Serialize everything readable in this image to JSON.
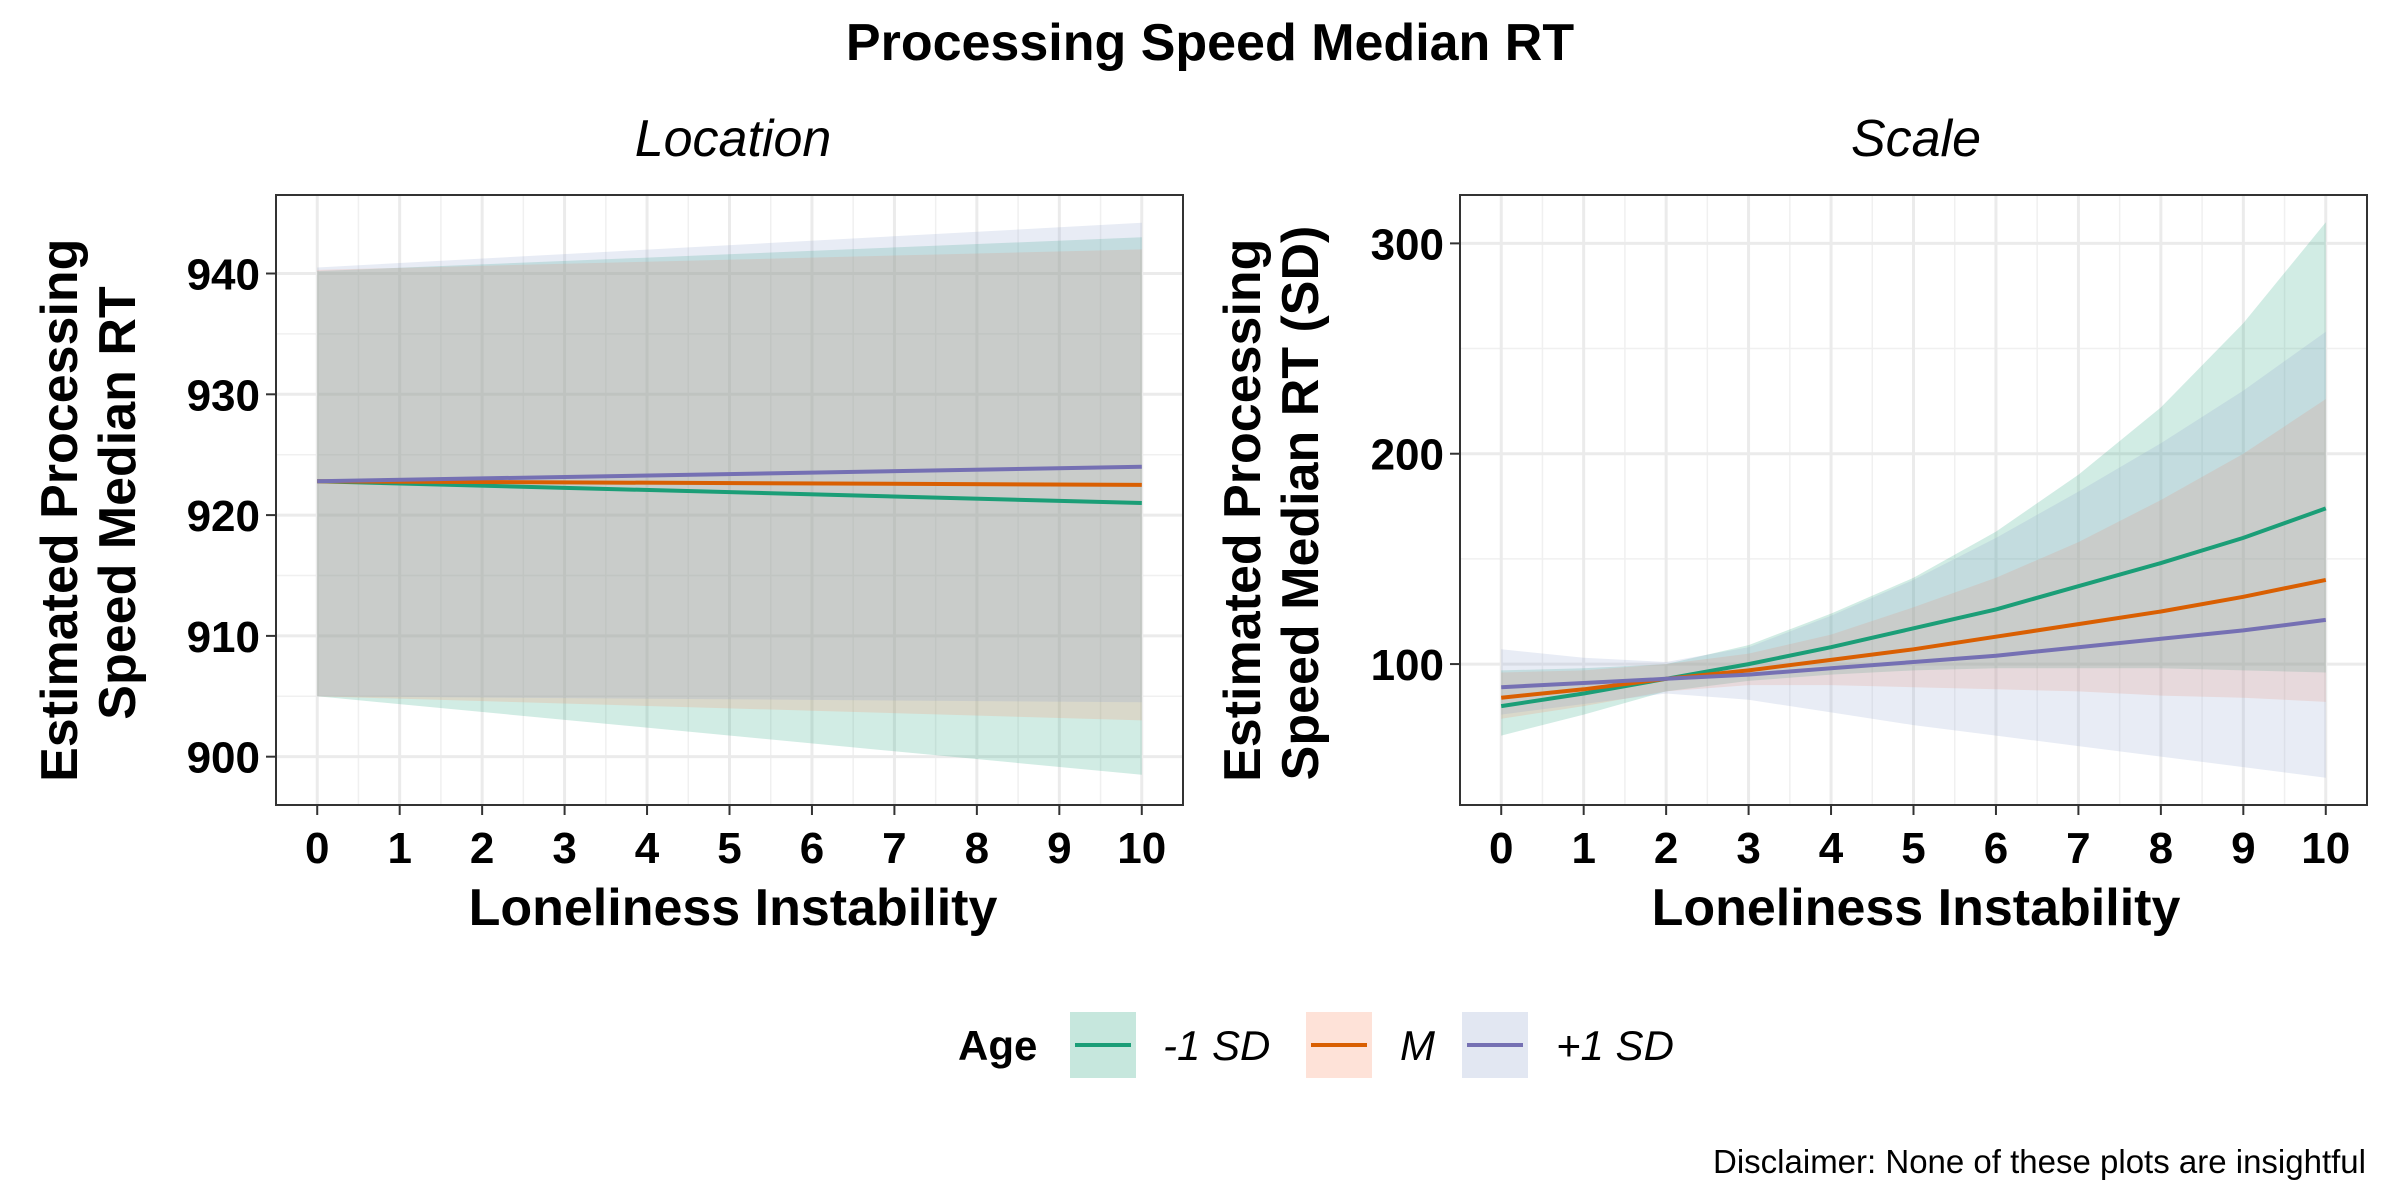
{
  "title": "Processing Speed Median RT",
  "caption": "Disclaimer: None of these plots are insightful",
  "legend": {
    "title": "Age",
    "entries": [
      {
        "label": "-1 SD",
        "color": "#1b9e77",
        "fill": "#1b9e77"
      },
      {
        "label": "M",
        "color": "#d95f02",
        "fill": "#fc8d62"
      },
      {
        "label": "+1 SD",
        "color": "#7570b3",
        "fill": "#8da0cb"
      }
    ]
  },
  "chart_data": [
    {
      "type": "line",
      "panel": "Location",
      "xlabel": "Loneliness Instability",
      "ylabel": [
        "Estimated Processing",
        "Speed Median RT"
      ],
      "xlim": [
        -0.5,
        10.5
      ],
      "ylim": [
        896,
        946.5
      ],
      "xticks": [
        0,
        1,
        2,
        3,
        4,
        5,
        6,
        7,
        8,
        9,
        10
      ],
      "xtick_labels": [
        "0",
        "1",
        "2",
        "3",
        "4",
        "5",
        "6",
        "7",
        "8",
        "9",
        "10"
      ],
      "yticks": [
        900,
        910,
        920,
        930,
        940
      ],
      "ytick_labels": [
        "900",
        "910",
        "920",
        "930",
        "940"
      ],
      "x": [
        0,
        10
      ],
      "series": [
        {
          "name": "-1 SD",
          "color": "#1b9e77",
          "fill": "#1b9e77",
          "values": [
            922.8,
            921.0
          ],
          "lower": [
            905.0,
            898.5
          ],
          "upper": [
            940.2,
            943.0
          ]
        },
        {
          "name": "M",
          "color": "#d95f02",
          "fill": "#fc8d62",
          "values": [
            922.8,
            922.5
          ],
          "lower": [
            905.0,
            903.0
          ],
          "upper": [
            940.3,
            942.0
          ]
        },
        {
          "name": "+1 SD",
          "color": "#7570b3",
          "fill": "#8da0cb",
          "values": [
            922.8,
            924.0
          ],
          "lower": [
            905.0,
            904.5
          ],
          "upper": [
            940.5,
            944.2
          ]
        }
      ]
    },
    {
      "type": "line",
      "panel": "Scale",
      "xlabel": "Loneliness Instability",
      "ylabel": [
        "Estimated Processing",
        "Speed Median RT (SD)"
      ],
      "xlim": [
        -0.5,
        10.5
      ],
      "ylim": [
        33,
        323
      ],
      "xticks": [
        0,
        1,
        2,
        3,
        4,
        5,
        6,
        7,
        8,
        9,
        10
      ],
      "xtick_labels": [
        "0",
        "1",
        "2",
        "3",
        "4",
        "5",
        "6",
        "7",
        "8",
        "9",
        "10"
      ],
      "yticks": [
        100,
        200,
        300
      ],
      "ytick_labels": [
        "100",
        "200",
        "300"
      ],
      "x": [
        0,
        1,
        2,
        3,
        4,
        5,
        6,
        7,
        8,
        9,
        10
      ],
      "series": [
        {
          "name": "-1 SD",
          "color": "#1b9e77",
          "fill": "#1b9e77",
          "values": [
            80,
            86,
            93,
            100,
            108,
            117,
            126,
            137,
            148,
            160,
            174
          ],
          "lower": [
            66,
            76,
            87,
            92,
            95,
            97,
            98,
            98,
            98,
            97,
            96
          ],
          "upper": [
            97,
            98,
            100,
            109,
            124,
            141,
            163,
            190,
            222,
            262,
            310
          ]
        },
        {
          "name": "M",
          "color": "#d95f02",
          "fill": "#fc8d62",
          "values": [
            84,
            88,
            93,
            97,
            102,
            107,
            113,
            119,
            125,
            132,
            140
          ],
          "lower": [
            74,
            80,
            87,
            90,
            90,
            89,
            88,
            87,
            85,
            84,
            82
          ],
          "upper": [
            96,
            97,
            100,
            105,
            114,
            127,
            141,
            158,
            178,
            200,
            226
          ]
        },
        {
          "name": "+1 SD",
          "color": "#7570b3",
          "fill": "#8da0cb",
          "values": [
            89,
            91,
            93,
            95,
            98,
            101,
            104,
            108,
            112,
            116,
            121
          ],
          "lower": [
            76,
            81,
            86,
            83,
            77,
            71,
            66,
            61,
            56,
            51,
            46
          ],
          "upper": [
            107,
            103,
            101,
            108,
            123,
            140,
            160,
            182,
            205,
            230,
            258
          ]
        }
      ]
    }
  ]
}
